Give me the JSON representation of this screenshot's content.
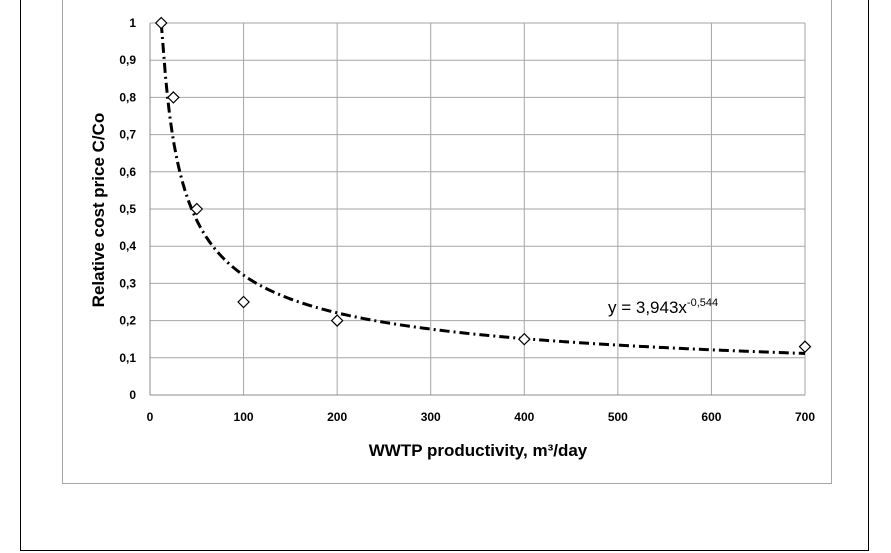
{
  "chart_data": {
    "type": "scatter",
    "xlabel": "WWTP productivity, m³/day",
    "ylabel": "Relative cost price C/Co",
    "xlim": [
      0,
      700
    ],
    "ylim": [
      0,
      1
    ],
    "x_ticks": [
      "0",
      "100",
      "200",
      "300",
      "400",
      "500",
      "600",
      "700"
    ],
    "y_ticks": [
      "0",
      "0,1",
      "0,2",
      "0,3",
      "0,4",
      "0,5",
      "0,6",
      "0,7",
      "0,8",
      "0,9",
      "1"
    ],
    "grid": true,
    "series": [
      {
        "marker": "diamond",
        "x": [
          12,
          25,
          50,
          100,
          200,
          400,
          700
        ],
        "y": [
          1.0,
          0.8,
          0.5,
          0.25,
          0.2,
          0.15,
          0.13
        ]
      }
    ],
    "trendline": {
      "type": "power",
      "a": 3.943,
      "b": -0.544,
      "style": "dash-dot",
      "label_main": "y = 3,943x",
      "label_exponent": "-0,544"
    }
  }
}
